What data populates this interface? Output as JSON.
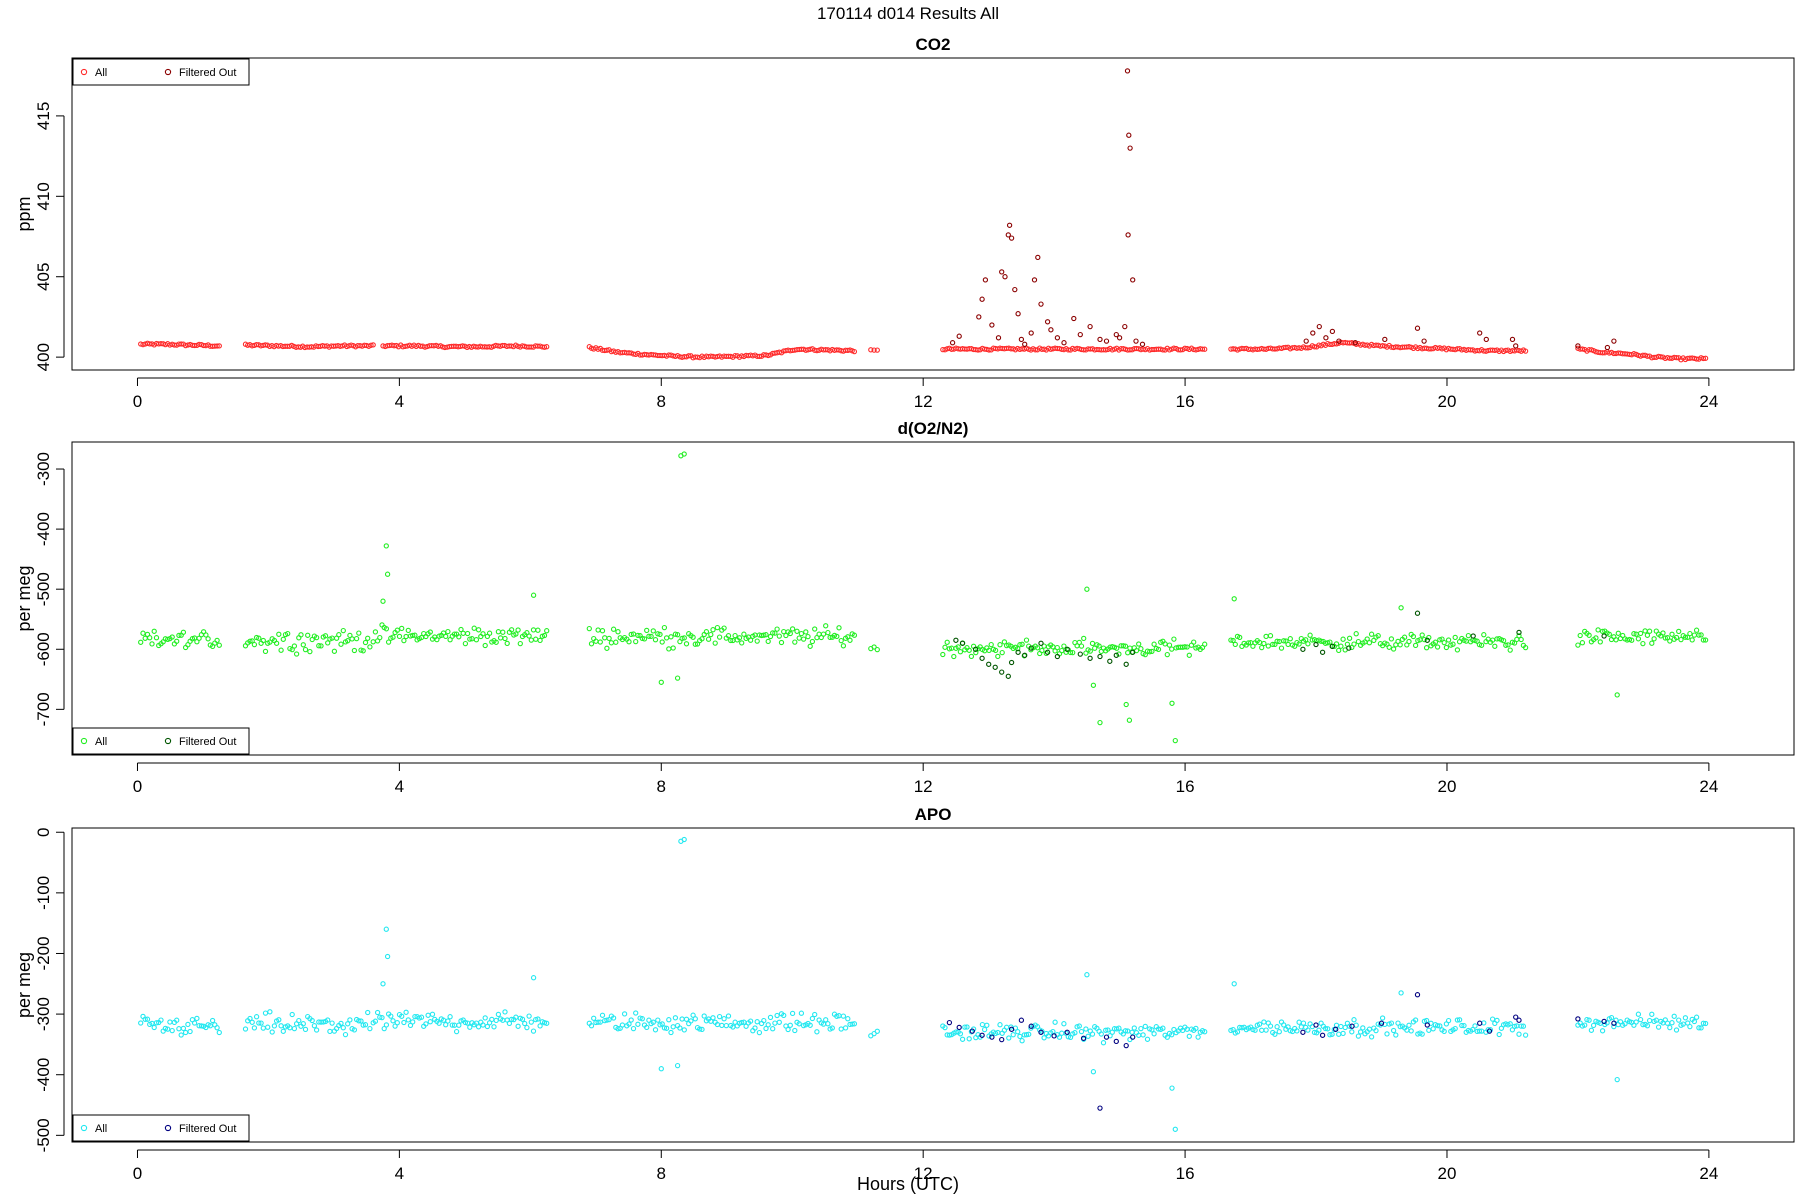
{
  "figure": {
    "title": "170114   d014   Results All",
    "xlabel": "Hours (UTC)"
  },
  "colors": {
    "co2_all": "#ff2a2a",
    "co2_filtered": "#8b0000",
    "o2_all": "#22ee22",
    "o2_filtered": "#005500",
    "apo_all": "#22e8f0",
    "apo_filtered": "#000080"
  },
  "chart_data": [
    {
      "type": "scatter",
      "title": "CO2",
      "ylabel": "ppm",
      "xlim": [
        -1,
        25.3
      ],
      "ylim": [
        399.2,
        418.6
      ],
      "x_ticks": [
        0,
        4,
        8,
        12,
        16,
        20,
        24
      ],
      "y_ticks": [
        400,
        405,
        410,
        415
      ],
      "legend": {
        "position": "top-left",
        "labels": [
          "All",
          "Filtered Out"
        ]
      },
      "series": [
        {
          "name": "All",
          "segments": [
            {
              "x_start": 0.05,
              "x_end": 1.25,
              "y": [
                400.8,
                400.8,
                400.75,
                400.7
              ]
            },
            {
              "x_start": 1.65,
              "x_end": 3.6,
              "y": [
                400.75,
                400.7,
                400.65,
                400.7,
                400.7
              ]
            },
            {
              "x_start": 3.75,
              "x_end": 6.25,
              "y": [
                400.7,
                400.7,
                400.65,
                400.65,
                400.7,
                400.65
              ]
            },
            {
              "x_start": 6.9,
              "x_end": 10.95,
              "y": [
                400.6,
                400.3,
                400.15,
                400.05,
                400.0,
                400.05,
                400.1,
                400.5,
                400.45,
                400.4
              ]
            },
            {
              "x_start": 11.2,
              "x_end": 11.3,
              "y": [
                400.4,
                400.4
              ]
            },
            {
              "x_start": 12.3,
              "x_end": 16.3,
              "y": [
                400.5,
                400.5,
                400.5,
                400.5,
                400.5,
                400.5,
                400.5,
                400.5,
                400.5
              ]
            },
            {
              "x_start": 16.7,
              "x_end": 21.2,
              "y": [
                400.5,
                400.5,
                400.6,
                400.9,
                400.7,
                400.6,
                400.5,
                400.4,
                400.4
              ]
            },
            {
              "x_start": 22.0,
              "x_end": 23.95,
              "y": [
                400.5,
                400.3,
                400.2,
                400.0,
                399.9,
                399.9
              ]
            }
          ]
        },
        {
          "name": "Filtered Out",
          "points": [
            [
              12.45,
              400.9
            ],
            [
              12.55,
              401.3
            ],
            [
              12.85,
              402.5
            ],
            [
              12.9,
              403.6
            ],
            [
              12.95,
              404.8
            ],
            [
              13.05,
              402.0
            ],
            [
              13.15,
              401.2
            ],
            [
              13.2,
              405.3
            ],
            [
              13.25,
              405.0
            ],
            [
              13.3,
              407.6
            ],
            [
              13.32,
              408.2
            ],
            [
              13.35,
              407.4
            ],
            [
              13.4,
              404.2
            ],
            [
              13.45,
              402.7
            ],
            [
              13.5,
              401.1
            ],
            [
              13.55,
              400.8
            ],
            [
              13.65,
              401.5
            ],
            [
              13.7,
              404.8
            ],
            [
              13.75,
              406.2
            ],
            [
              13.8,
              403.3
            ],
            [
              13.9,
              402.2
            ],
            [
              13.95,
              401.7
            ],
            [
              14.05,
              401.2
            ],
            [
              14.15,
              400.9
            ],
            [
              14.3,
              402.4
            ],
            [
              14.4,
              401.4
            ],
            [
              14.55,
              401.9
            ],
            [
              14.7,
              401.1
            ],
            [
              14.8,
              401.0
            ],
            [
              14.95,
              401.4
            ],
            [
              15.0,
              401.2
            ],
            [
              15.08,
              401.9
            ],
            [
              15.12,
              417.8
            ],
            [
              15.14,
              413.8
            ],
            [
              15.16,
              413.0
            ],
            [
              15.13,
              407.6
            ],
            [
              15.2,
              404.8
            ],
            [
              15.25,
              401.0
            ],
            [
              15.35,
              400.8
            ],
            [
              17.85,
              401.0
            ],
            [
              17.95,
              401.5
            ],
            [
              18.05,
              401.9
            ],
            [
              18.15,
              401.2
            ],
            [
              18.25,
              401.6
            ],
            [
              18.35,
              401.0
            ],
            [
              18.6,
              400.9
            ],
            [
              19.05,
              401.1
            ],
            [
              19.55,
              401.8
            ],
            [
              19.65,
              401.0
            ],
            [
              20.5,
              401.5
            ],
            [
              20.6,
              401.1
            ],
            [
              21.0,
              401.1
            ],
            [
              21.05,
              400.7
            ],
            [
              22.0,
              400.7
            ],
            [
              22.45,
              400.6
            ],
            [
              22.55,
              401.0
            ]
          ]
        }
      ]
    },
    {
      "type": "scatter",
      "title": "d(O2/N2)",
      "ylabel": "per meg",
      "xlim": [
        -1,
        25.3
      ],
      "ylim": [
        -776,
        -255
      ],
      "y_reversed": true,
      "x_ticks": [
        0,
        4,
        8,
        12,
        16,
        20,
        24
      ],
      "y_ticks": [
        -300,
        -400,
        -500,
        -600,
        -700
      ],
      "legend": {
        "position": "bottom-left",
        "labels": [
          "All",
          "Filtered Out"
        ]
      },
      "series": [
        {
          "name": "All",
          "segments": [
            {
              "x_start": 0.05,
              "x_end": 1.25,
              "y_center": -585,
              "spread": 14
            },
            {
              "x_start": 1.65,
              "x_end": 3.55,
              "y_center": -585,
              "spread": 16
            },
            {
              "x_start": 3.6,
              "x_end": 6.25,
              "y_center": -578,
              "spread": 14
            },
            {
              "x_start": 6.9,
              "x_end": 10.95,
              "y_center": -579,
              "spread": 14
            },
            {
              "x_start": 11.2,
              "x_end": 11.3,
              "y_center": -598,
              "spread": 6
            },
            {
              "x_start": 12.3,
              "x_end": 16.3,
              "y_center": -598,
              "spread": 12
            },
            {
              "x_start": 16.7,
              "x_end": 21.2,
              "y_center": -588,
              "spread": 12
            },
            {
              "x_start": 22.0,
              "x_end": 23.95,
              "y_center": -580,
              "spread": 12
            }
          ],
          "outliers": [
            [
              3.8,
              -428
            ],
            [
              3.82,
              -475
            ],
            [
              3.75,
              -520
            ],
            [
              6.05,
              -510
            ],
            [
              8.3,
              -278
            ],
            [
              8.35,
              -275
            ],
            [
              8.0,
              -655
            ],
            [
              8.25,
              -648
            ],
            [
              14.5,
              -500
            ],
            [
              14.6,
              -660
            ],
            [
              14.7,
              -722
            ],
            [
              15.1,
              -692
            ],
            [
              15.15,
              -718
            ],
            [
              15.8,
              -690
            ],
            [
              15.85,
              -752
            ],
            [
              16.75,
              -516
            ],
            [
              19.3,
              -531
            ],
            [
              22.6,
              -676
            ]
          ]
        },
        {
          "name": "Filtered Out",
          "points": [
            [
              12.5,
              -585
            ],
            [
              12.6,
              -590
            ],
            [
              12.8,
              -600
            ],
            [
              12.9,
              -615
            ],
            [
              13.0,
              -625
            ],
            [
              13.1,
              -630
            ],
            [
              13.2,
              -638
            ],
            [
              13.3,
              -645
            ],
            [
              13.35,
              -622
            ],
            [
              13.45,
              -605
            ],
            [
              13.55,
              -610
            ],
            [
              13.65,
              -598
            ],
            [
              13.8,
              -590
            ],
            [
              13.9,
              -605
            ],
            [
              14.05,
              -612
            ],
            [
              14.2,
              -600
            ],
            [
              14.4,
              -608
            ],
            [
              14.55,
              -615
            ],
            [
              14.7,
              -612
            ],
            [
              14.85,
              -620
            ],
            [
              14.95,
              -610
            ],
            [
              15.1,
              -625
            ],
            [
              15.2,
              -605
            ],
            [
              17.8,
              -600
            ],
            [
              18.0,
              -592
            ],
            [
              18.1,
              -605
            ],
            [
              18.25,
              -595
            ],
            [
              18.5,
              -598
            ],
            [
              19.55,
              -540
            ],
            [
              19.7,
              -585
            ],
            [
              20.4,
              -578
            ],
            [
              21.1,
              -572
            ],
            [
              22.4,
              -578
            ]
          ]
        }
      ]
    },
    {
      "type": "scatter",
      "title": "APO",
      "ylabel": "per meg",
      "xlim": [
        -1,
        25.3
      ],
      "ylim": [
        -511,
        7
      ],
      "y_reversed": true,
      "x_ticks": [
        0,
        4,
        8,
        12,
        16,
        20,
        24
      ],
      "y_ticks": [
        0,
        -100,
        -200,
        -300,
        -400,
        -500
      ],
      "legend": {
        "position": "bottom-left",
        "labels": [
          "All",
          "Filtered Out"
        ]
      },
      "series": [
        {
          "name": "All",
          "segments": [
            {
              "x_start": 0.05,
              "x_end": 1.25,
              "y_center": -320,
              "spread": 14
            },
            {
              "x_start": 1.65,
              "x_end": 3.55,
              "y_center": -318,
              "spread": 16
            },
            {
              "x_start": 3.6,
              "x_end": 6.25,
              "y_center": -312,
              "spread": 14
            },
            {
              "x_start": 6.9,
              "x_end": 10.95,
              "y_center": -314,
              "spread": 14
            },
            {
              "x_start": 11.2,
              "x_end": 11.3,
              "y_center": -332,
              "spread": 6
            },
            {
              "x_start": 12.3,
              "x_end": 16.3,
              "y_center": -330,
              "spread": 12
            },
            {
              "x_start": 16.7,
              "x_end": 21.2,
              "y_center": -322,
              "spread": 12
            },
            {
              "x_start": 22.0,
              "x_end": 23.95,
              "y_center": -314,
              "spread": 12
            }
          ],
          "outliers": [
            [
              3.8,
              -160
            ],
            [
              3.82,
              -205
            ],
            [
              3.75,
              -250
            ],
            [
              6.05,
              -240
            ],
            [
              8.3,
              -15
            ],
            [
              8.35,
              -12
            ],
            [
              8.0,
              -390
            ],
            [
              8.25,
              -385
            ],
            [
              14.5,
              -235
            ],
            [
              14.6,
              -395
            ],
            [
              15.8,
              -422
            ],
            [
              15.85,
              -490
            ],
            [
              16.75,
              -250
            ],
            [
              19.3,
              -265
            ],
            [
              22.6,
              -408
            ]
          ]
        },
        {
          "name": "Filtered Out",
          "points": [
            [
              12.4,
              -314
            ],
            [
              12.55,
              -322
            ],
            [
              12.75,
              -328
            ],
            [
              12.9,
              -335
            ],
            [
              13.05,
              -338
            ],
            [
              13.2,
              -342
            ],
            [
              13.35,
              -325
            ],
            [
              13.5,
              -310
            ],
            [
              13.65,
              -320
            ],
            [
              13.8,
              -330
            ],
            [
              14.0,
              -336
            ],
            [
              14.2,
              -330
            ],
            [
              14.45,
              -340
            ],
            [
              14.7,
              -455
            ],
            [
              14.8,
              -338
            ],
            [
              14.95,
              -345
            ],
            [
              15.1,
              -352
            ],
            [
              15.2,
              -338
            ],
            [
              17.8,
              -330
            ],
            [
              18.0,
              -318
            ],
            [
              18.1,
              -335
            ],
            [
              18.3,
              -325
            ],
            [
              18.55,
              -320
            ],
            [
              19.0,
              -315
            ],
            [
              19.55,
              -268
            ],
            [
              19.7,
              -318
            ],
            [
              20.5,
              -315
            ],
            [
              20.65,
              -328
            ],
            [
              21.05,
              -305
            ],
            [
              21.1,
              -310
            ],
            [
              22.0,
              -308
            ],
            [
              22.4,
              -312
            ],
            [
              22.55,
              -315
            ]
          ]
        }
      ]
    }
  ]
}
